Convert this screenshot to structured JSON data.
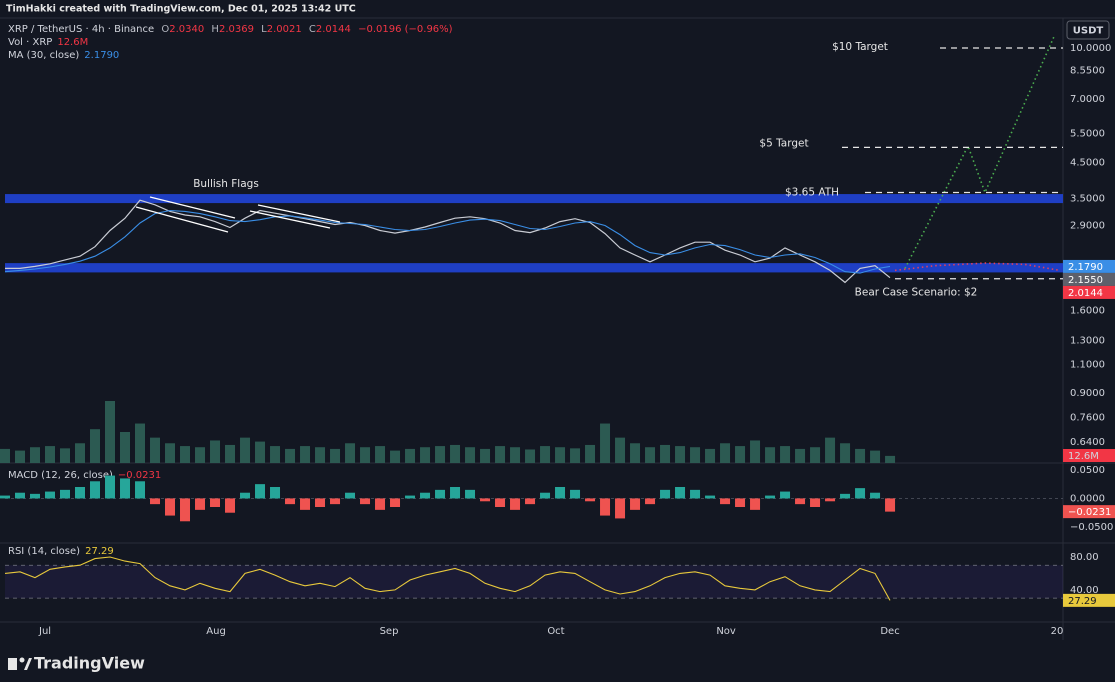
{
  "header": {
    "attribution": "TimHakki created with TradingView.com, Dec 01, 2025 13:42 UTC",
    "currency": "USDT"
  },
  "footer": {
    "brand": "TradingView"
  },
  "chart_data": [
    {
      "type": "line",
      "log_scale": true,
      "grid": false,
      "ohlc_legend": [
        [
          "O",
          "2.0340"
        ],
        [
          "H",
          "2.0369"
        ],
        [
          "L",
          "2.0021"
        ],
        [
          "C",
          "2.0144"
        ]
      ],
      "change": "−0.0196 (−0.96%)",
      "x": [
        0,
        1,
        2,
        3,
        4,
        5,
        6,
        7,
        8,
        9,
        10,
        11,
        12,
        13,
        14,
        15,
        16,
        17,
        18,
        19,
        20,
        21,
        22,
        23,
        24,
        25,
        26,
        27,
        28,
        29,
        30,
        31,
        32,
        33,
        34,
        35,
        36,
        37,
        38,
        39,
        40,
        41,
        42,
        43,
        44,
        45,
        46,
        47,
        48,
        49,
        50,
        51,
        52,
        53,
        54,
        55,
        56,
        57,
        58,
        59
      ],
      "xlim": [
        0,
        70.53
      ],
      "xticks": [
        {
          "value": 2.67,
          "label": "Jul"
        },
        {
          "value": 14.07,
          "label": "Aug"
        },
        {
          "value": 25.6,
          "label": "Sep"
        },
        {
          "value": 36.73,
          "label": "Oct"
        },
        {
          "value": 48.07,
          "label": "Nov"
        },
        {
          "value": 59,
          "label": "Dec"
        },
        {
          "value": 70.13,
          "label": "20"
        }
      ],
      "ylim": [
        0.553,
        12.33
      ],
      "yticks": [
        {
          "value": 10,
          "label": "10.0000"
        },
        {
          "value": 8.55,
          "label": "8.5500"
        },
        {
          "value": 7,
          "label": "7.0000"
        },
        {
          "value": 5.5,
          "label": "5.5000"
        },
        {
          "value": 4.5,
          "label": "4.5000"
        },
        {
          "value": 3.5,
          "label": "3.5000"
        },
        {
          "value": 2.9,
          "label": "2.9000"
        },
        {
          "value": 1.6,
          "label": "1.6000"
        },
        {
          "value": 1.3,
          "label": "1.3000"
        },
        {
          "value": 1.1,
          "label": "1.1000"
        },
        {
          "value": 0.9,
          "label": "0.9000"
        },
        {
          "value": 0.76,
          "label": "0.7600"
        },
        {
          "value": 0.64,
          "label": "0.6400"
        }
      ],
      "series": [
        {
          "name": "XRP / TetherUS · 4h · Binance",
          "color": "#c9ccd4",
          "values": [
            2.15,
            2.15,
            2.18,
            2.22,
            2.28,
            2.34,
            2.5,
            2.8,
            3.05,
            3.46,
            3.35,
            3.2,
            3.12,
            3.08,
            2.98,
            2.86,
            3.05,
            3.22,
            3.16,
            3.1,
            3.04,
            2.98,
            2.92,
            2.96,
            2.9,
            2.8,
            2.75,
            2.8,
            2.87,
            2.96,
            3.05,
            3.08,
            3.04,
            2.95,
            2.8,
            2.76,
            2.85,
            2.98,
            3.04,
            2.96,
            2.74,
            2.48,
            2.36,
            2.25,
            2.36,
            2.48,
            2.58,
            2.58,
            2.44,
            2.36,
            2.25,
            2.31,
            2.48,
            2.36,
            2.25,
            2.12,
            1.95,
            2.15,
            2.19,
            2.0144
          ]
        },
        {
          "name": "MA (30, close)",
          "color": "#3a8ee6",
          "legend_value": "2.1790",
          "values": [
            2.1,
            2.12,
            2.14,
            2.17,
            2.21,
            2.26,
            2.34,
            2.48,
            2.68,
            2.95,
            3.15,
            3.22,
            3.2,
            3.15,
            3.08,
            3.0,
            2.98,
            3.02,
            3.08,
            3.1,
            3.06,
            3.01,
            2.96,
            2.94,
            2.92,
            2.87,
            2.82,
            2.8,
            2.82,
            2.88,
            2.95,
            3.01,
            3.03,
            3.0,
            2.92,
            2.84,
            2.82,
            2.88,
            2.95,
            2.98,
            2.9,
            2.72,
            2.52,
            2.4,
            2.36,
            2.4,
            2.48,
            2.54,
            2.52,
            2.45,
            2.36,
            2.32,
            2.36,
            2.38,
            2.32,
            2.22,
            2.1,
            2.08,
            2.14,
            2.179
          ]
        },
        {
          "name": "Vol · XRP",
          "axis": "volume",
          "color": "#2c5a52",
          "legend_value": "12.6M",
          "values": [
            25,
            22,
            28,
            30,
            26,
            35,
            60,
            110,
            55,
            70,
            45,
            35,
            30,
            28,
            40,
            32,
            45,
            38,
            30,
            25,
            30,
            28,
            25,
            35,
            28,
            30,
            22,
            25,
            28,
            30,
            32,
            28,
            25,
            30,
            28,
            24,
            30,
            28,
            26,
            32,
            70,
            45,
            35,
            28,
            32,
            30,
            28,
            25,
            35,
            30,
            40,
            28,
            30,
            25,
            28,
            45,
            35,
            25,
            22,
            12.6
          ]
        }
      ],
      "badges": [
        {
          "value": 2.155,
          "label": "2.1550",
          "color": "#5d606b"
        }
      ],
      "zones": [
        {
          "from": 2.09,
          "to": 2.23
        },
        {
          "from": 3.39,
          "to": 3.61
        }
      ],
      "zone_color": "#1f3fc4",
      "levels": [
        {
          "value": 10,
          "label": "$10 Target"
        },
        {
          "value": 5,
          "label": "$5 Target"
        },
        {
          "value": 3.65,
          "label": "$3.65 ATH"
        },
        {
          "value": 2,
          "label": "Bear Case Scenario: $2"
        }
      ],
      "annotations": [
        "Bullish Flags"
      ],
      "projections": [
        {
          "color": "#4caf50",
          "x": [
            60,
            64.2,
            65.33,
            70
          ],
          "values": [
            2.15,
            5.05,
            3.65,
            11.0
          ]
        },
        {
          "color": "#e0405e",
          "x": [
            59.33,
            62,
            65.33,
            68,
            70.33
          ],
          "values": [
            2.12,
            2.19,
            2.23,
            2.21,
            2.12
          ]
        }
      ]
    },
    {
      "type": "bar",
      "title": "MACD (12, 26, close)",
      "legend_value": "−0.0231",
      "grid": false,
      "x": [
        0,
        1,
        2,
        3,
        4,
        5,
        6,
        7,
        8,
        9,
        10,
        11,
        12,
        13,
        14,
        15,
        16,
        17,
        18,
        19,
        20,
        21,
        22,
        23,
        24,
        25,
        26,
        27,
        28,
        29,
        30,
        31,
        32,
        33,
        34,
        35,
        36,
        37,
        38,
        39,
        40,
        41,
        42,
        43,
        44,
        45,
        46,
        47,
        48,
        49,
        50,
        51,
        52,
        53,
        54,
        55,
        56,
        57,
        58,
        59
      ],
      "xlim": [
        0,
        70.53
      ],
      "ylim": [
        -0.078,
        0.062
      ],
      "yticks": [
        {
          "value": 0.05,
          "label": "0.0500"
        },
        {
          "value": 0,
          "label": "0.0000"
        },
        {
          "value": -0.05,
          "label": "−0.0500"
        }
      ],
      "colors": {
        "up": "#26a69a",
        "down": "#ef5350"
      },
      "values": [
        0.005,
        0.01,
        0.008,
        0.012,
        0.015,
        0.02,
        0.03,
        0.04,
        0.035,
        0.03,
        -0.01,
        -0.03,
        -0.04,
        -0.02,
        -0.015,
        -0.025,
        0.01,
        0.025,
        0.02,
        -0.01,
        -0.02,
        -0.015,
        -0.01,
        0.01,
        -0.01,
        -0.02,
        -0.015,
        0.005,
        0.01,
        0.015,
        0.02,
        0.015,
        -0.005,
        -0.015,
        -0.02,
        -0.01,
        0.01,
        0.02,
        0.015,
        -0.005,
        -0.03,
        -0.035,
        -0.02,
        -0.01,
        0.015,
        0.02,
        0.015,
        0.005,
        -0.01,
        -0.015,
        -0.02,
        0.005,
        0.012,
        -0.01,
        -0.015,
        -0.005,
        0.008,
        0.018,
        0.01,
        -0.0231
      ]
    },
    {
      "type": "line",
      "title": "RSI (14, close)",
      "legend_value": "27.29",
      "grid": false,
      "color": "#e8c93c",
      "x": [
        0,
        1,
        2,
        3,
        4,
        5,
        6,
        7,
        8,
        9,
        10,
        11,
        12,
        13,
        14,
        15,
        16,
        17,
        18,
        19,
        20,
        21,
        22,
        23,
        24,
        25,
        26,
        27,
        28,
        29,
        30,
        31,
        32,
        33,
        34,
        35,
        36,
        37,
        38,
        39,
        40,
        41,
        42,
        43,
        44,
        45,
        46,
        47,
        48,
        49,
        50,
        51,
        52,
        53,
        54,
        55,
        56,
        57,
        58,
        59
      ],
      "xlim": [
        0,
        70.53
      ],
      "ylim": [
        1,
        97
      ],
      "bands": [
        30,
        70
      ],
      "yticks": [
        {
          "value": 80,
          "label": "80.00"
        },
        {
          "value": 40,
          "label": "40.00"
        }
      ],
      "values": [
        60,
        62,
        55,
        65,
        68,
        70,
        78,
        80,
        75,
        72,
        55,
        45,
        40,
        48,
        42,
        38,
        60,
        65,
        58,
        50,
        45,
        48,
        44,
        55,
        42,
        38,
        40,
        52,
        58,
        62,
        66,
        60,
        48,
        42,
        38,
        45,
        58,
        62,
        60,
        50,
        40,
        35,
        38,
        45,
        55,
        60,
        62,
        58,
        45,
        42,
        40,
        50,
        56,
        45,
        40,
        38,
        52,
        66,
        60,
        27.29
      ]
    }
  ]
}
